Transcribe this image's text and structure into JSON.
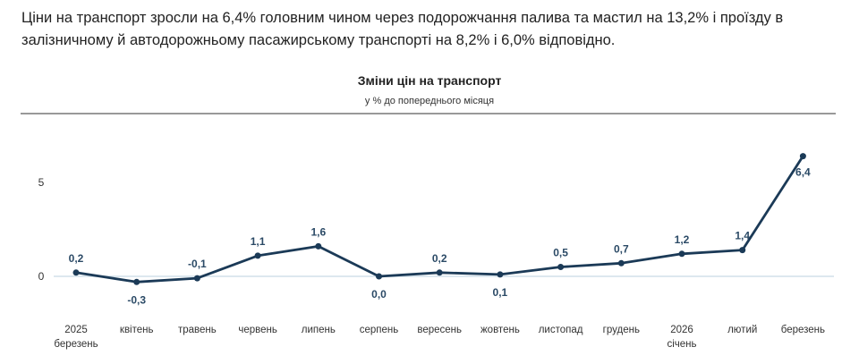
{
  "headline": "Ціни на транспорт зросли на 6,4% головним чином через подорожчання палива та мастил на 13,2% і проїзду в залізничному й автодорожньому пасажирському транспорті на 8,2% і 6,0% відповідно.",
  "chart_data": {
    "type": "line",
    "title": "Зміни цін на транспорт",
    "subtitle": "у % до попереднього місяця",
    "categories": [
      [
        "2025",
        "березень"
      ],
      [
        "квітень"
      ],
      [
        "травень"
      ],
      [
        "червень"
      ],
      [
        "липень"
      ],
      [
        "серпень"
      ],
      [
        "вересень"
      ],
      [
        "жовтень"
      ],
      [
        "листопад"
      ],
      [
        "грудень"
      ],
      [
        "2026",
        "січень"
      ],
      [
        "лютий"
      ],
      [
        "березень"
      ]
    ],
    "values": [
      0.2,
      -0.3,
      -0.1,
      1.1,
      1.6,
      0.0,
      0.2,
      0.1,
      0.5,
      0.7,
      1.2,
      1.4,
      6.4
    ],
    "data_labels": [
      "0,2",
      "-0,3",
      "-0,1",
      "1,1",
      "1,6",
      "0,0",
      "0,2",
      "0,1",
      "0,5",
      "0,7",
      "1,2",
      "1,4",
      "6,4"
    ],
    "y_ticks": [
      "0",
      "5"
    ],
    "y_tick_values": [
      0,
      5
    ],
    "grid": false,
    "colors": {
      "line": "#1b3a57",
      "zero_line": "#dde8ef",
      "label": "#2b4a66"
    }
  }
}
